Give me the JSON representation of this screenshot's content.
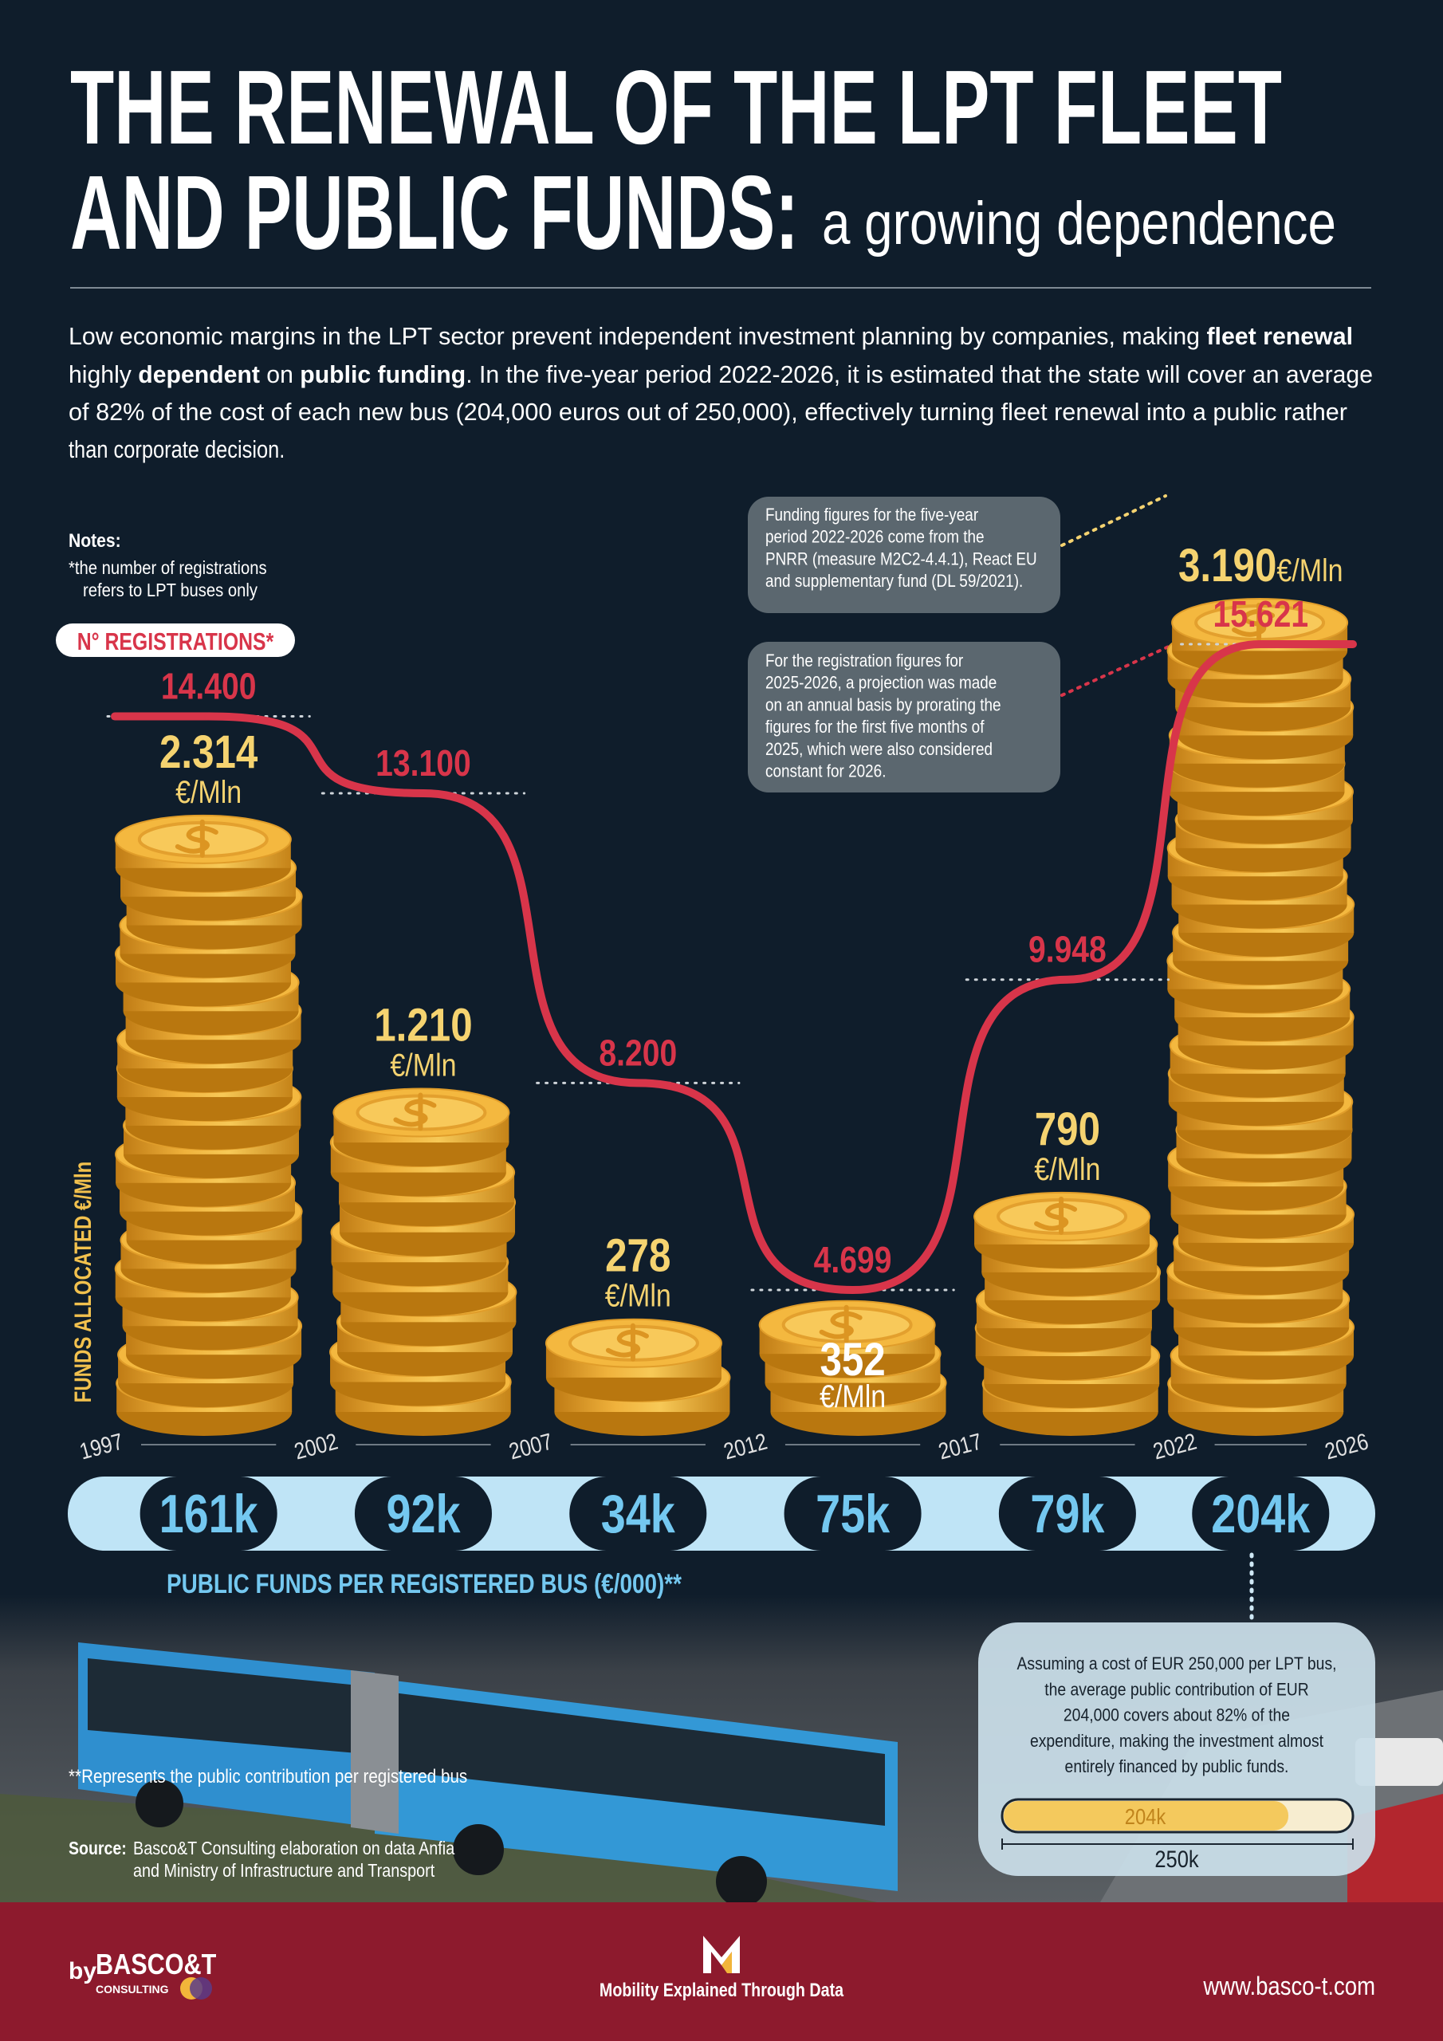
{
  "header": {
    "title_line1": "THE RENEWAL OF THE LPT FLEET",
    "title_line2": "AND PUBLIC FUNDS:",
    "subtitle": "a growing dependence"
  },
  "intro": {
    "lines": [
      [
        {
          "text": "Low economic margins in the LPT sector prevent independent investment planning by companies, making ",
          "bold": false
        },
        {
          "text": "fleet renewal",
          "bold": true
        }
      ],
      [
        {
          "text": "highly ",
          "bold": false
        },
        {
          "text": "dependent",
          "bold": true
        },
        {
          "text": " on ",
          "bold": false
        },
        {
          "text": "public funding",
          "bold": true
        },
        {
          "text": ". In the five-year period 2022-2026, it is estimated that the state will cover an average",
          "bold": false
        }
      ],
      [
        {
          "text": "of 82% of the cost of each new bus (204,000 euros out of 250,000), effectively turning fleet renewal into a public rather",
          "bold": false
        }
      ],
      [
        {
          "text": "than corporate decision.",
          "bold": false
        }
      ]
    ]
  },
  "notes": {
    "title": "Notes:",
    "lines": [
      "*the number of registrations",
      "refers to LPT buses only"
    ]
  },
  "callouts": [
    {
      "lines": [
        "Funding figures for the five-year",
        "period 2022-2026 come from the",
        "PNRR (measure M2C2-4.4.1), React EU",
        "and supplementary fund (DL 59/2021)."
      ]
    },
    {
      "lines": [
        "For the registration figures for",
        "2025-2026, a projection was made",
        "on an annual basis by prorating the",
        "figures for the first five months of",
        "2025, which were also considered",
        "constant for 2026."
      ]
    }
  ],
  "chart_data": {
    "type": "histogram",
    "y_label": "FUNDS ALLOCATED €/Mln",
    "bins": [
      1997,
      2002,
      2007,
      2012,
      2017,
      2022,
      2026
    ],
    "xticks": [
      1997,
      2002,
      2007,
      2012,
      2017,
      2022,
      2026
    ],
    "values": [
      2314,
      1210,
      278,
      352,
      790,
      3190
    ],
    "value_labels": [
      "2.314",
      "1.210",
      "278",
      "352",
      "790",
      "3.190"
    ],
    "unit": "€/Mln",
    "color": "#f2b53a",
    "registrations": {
      "type": "line",
      "name": "N° REGISTRATIONS*",
      "values": [
        14400,
        13100,
        8200,
        4699,
        9948,
        15621
      ],
      "value_labels": [
        "14.400",
        "13.100",
        "8.200",
        "4.699",
        "9.948",
        "15.621"
      ],
      "color": "#d8354a"
    },
    "per_bus": {
      "title": "PUBLIC FUNDS PER REGISTERED BUS  (€/000)**",
      "values": [
        161000,
        92000,
        34000,
        75000,
        79000,
        204000
      ],
      "value_labels": [
        "161k",
        "92k",
        "34k",
        "75k",
        "79k",
        "204k"
      ],
      "color": "#74c8f0"
    }
  },
  "cost_box": {
    "lines": [
      "Assuming a cost of EUR 250,000 per LPT bus,",
      "the average public contribution of EUR",
      "204,000 covers about 82% of the",
      "expenditure, making the investment almost",
      "entirely financed by public funds."
    ],
    "contribution": 204000,
    "contribution_label": "204k",
    "cost": 250000,
    "cost_label": "250k"
  },
  "footnote": "**Represents the public contribution per registered bus",
  "source": {
    "label": "Source:",
    "lines": [
      "Basco&T Consulting elaboration on data Anfia",
      "and Ministry of Infrastructure and Transport"
    ]
  },
  "footer": {
    "by": "by",
    "brand": "BASCO&T",
    "brand_sub": "CONSULTING",
    "tagline": "Mobility Explained Through Data",
    "url": "www.basco-t.com"
  }
}
